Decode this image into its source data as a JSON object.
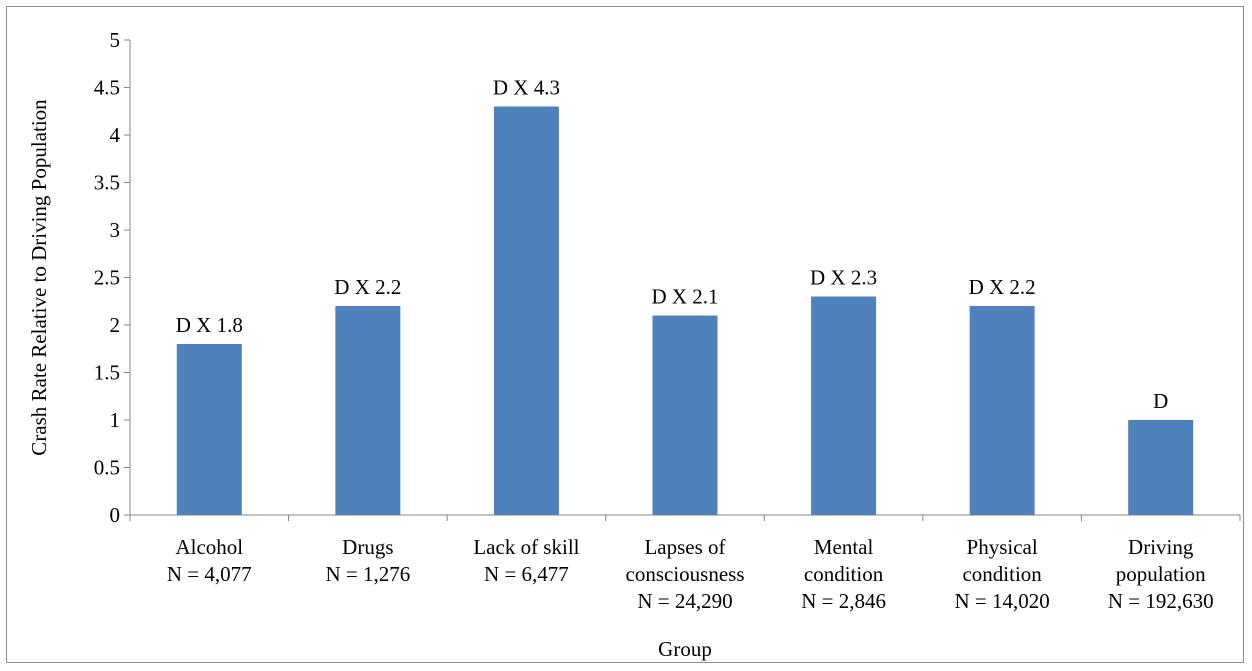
{
  "chart_data": {
    "type": "bar",
    "title": "",
    "xlabel": "Group",
    "ylabel": "Crash Rate Relative to Driving Population",
    "ylim": [
      0,
      5
    ],
    "yticks": [
      "0",
      "0.5",
      "1",
      "1.5",
      "2",
      "2.5",
      "3",
      "3.5",
      "4",
      "4.5",
      "5"
    ],
    "categories": [
      [
        "Alcohol",
        "N = 4,077"
      ],
      [
        "Drugs",
        "N = 1,276"
      ],
      [
        "Lack of skill",
        "N = 6,477"
      ],
      [
        "Lapses of",
        "consciousness",
        "N = 24,290"
      ],
      [
        "Mental",
        "condition",
        "N = 2,846"
      ],
      [
        "Physical",
        "condition",
        "N = 14,020"
      ],
      [
        "Driving",
        "population",
        "N = 192,630"
      ]
    ],
    "values": [
      1.8,
      2.2,
      4.3,
      2.1,
      2.3,
      2.2,
      1.0
    ],
    "data_labels": [
      "D X 1.8",
      "D X 2.2",
      "D X 4.3",
      "D X 2.1",
      "D X 2.3",
      "D X 2.2",
      "D"
    ],
    "bar_color": "#4f81bd",
    "grid": false,
    "legend": "none"
  }
}
